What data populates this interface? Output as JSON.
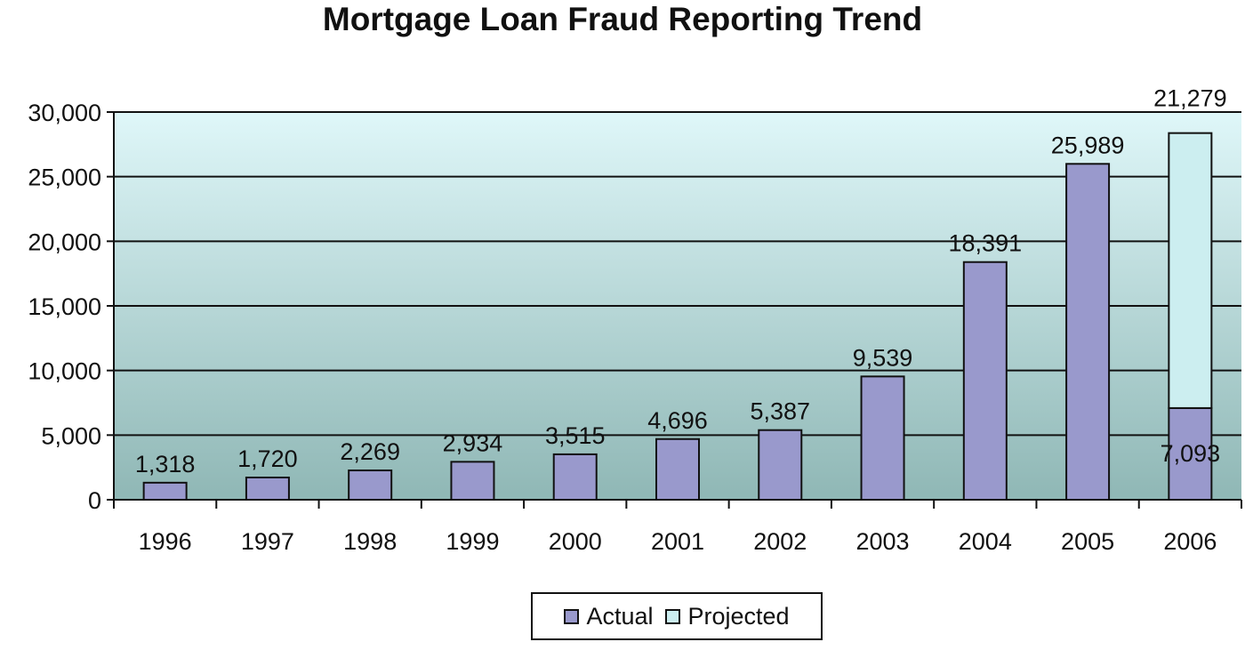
{
  "chart_data": {
    "type": "bar",
    "stacked": true,
    "title": "Mortgage Loan Fraud Reporting Trend",
    "xlabel": "",
    "ylabel": "",
    "ylim": [
      0,
      30000
    ],
    "yticks": [
      "0",
      "5,000",
      "10,000",
      "15,000",
      "20,000",
      "25,000",
      "30,000"
    ],
    "grid": true,
    "legend_position": "bottom",
    "categories": [
      "1996",
      "1997",
      "1998",
      "1999",
      "2000",
      "2001",
      "2002",
      "2003",
      "2004",
      "2005",
      "2006"
    ],
    "series": [
      {
        "name": "Actual",
        "color": "#9999cc",
        "values": [
          1318,
          1720,
          2269,
          2934,
          3515,
          4696,
          5387,
          9539,
          18391,
          25989,
          7093
        ],
        "labels": [
          "1,318",
          "1,720",
          "2,269",
          "2,934",
          "3,515",
          "4,696",
          "5,387",
          "9,539",
          "18,391",
          "25,989",
          "7,093"
        ]
      },
      {
        "name": "Projected",
        "color": "#cceef0",
        "values": [
          0,
          0,
          0,
          0,
          0,
          0,
          0,
          0,
          0,
          0,
          21279
        ],
        "labels": [
          "",
          "",
          "",
          "",
          "",
          "",
          "",
          "",
          "",
          "",
          "21,279"
        ]
      }
    ]
  }
}
